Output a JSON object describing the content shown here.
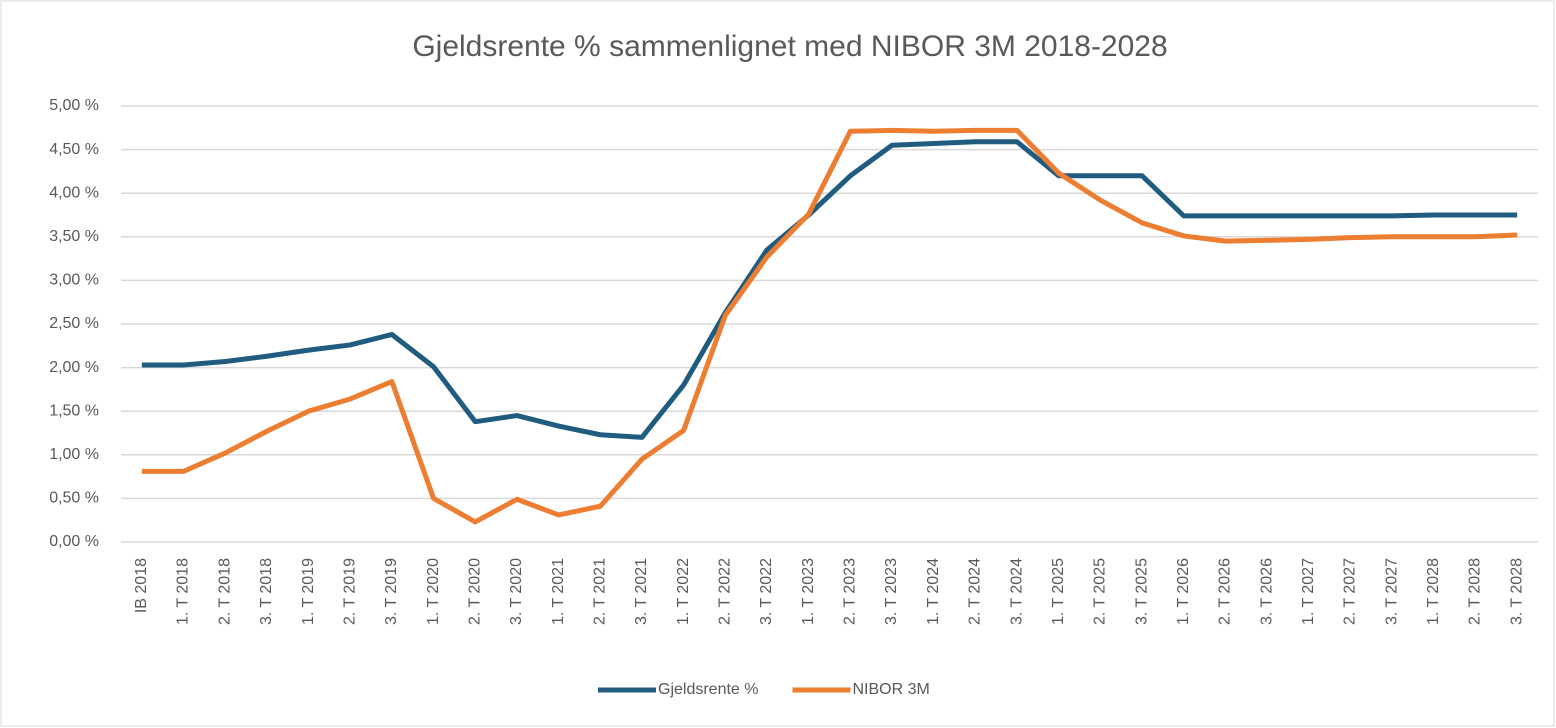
{
  "chart_data": {
    "type": "line",
    "title": "Gjeldsrente % sammenlignet med NIBOR 3M 2018-2028",
    "categories": [
      "IB 2018",
      "1. T 2018",
      "2. T 2018",
      "3. T 2018",
      "1. T 2019",
      "2. T 2019",
      "3. T 2019",
      "1. T 2020",
      "2. T 2020",
      "3. T 2020",
      "1. T 2021",
      "2. T 2021",
      "3. T 2021",
      "1. T 2022",
      "2. T 2022",
      "3. T 2022",
      "1. T 2023",
      "2. T 2023",
      "3. T 2023",
      "1. T 2024",
      "2. T 2024",
      "3. T 2024",
      "1. T 2025",
      "2. T 2025",
      "3. T 2025",
      "1. T 2026",
      "2. T 2026",
      "3. T 2026",
      "1. T 2027",
      "2. T 2027",
      "3. T 2027",
      "1. T 2028",
      "2. T 2028",
      "3. T 2028"
    ],
    "series": [
      {
        "name": "Gjeldsrente %",
        "color": "#1f5c7f",
        "values": [
          2.03,
          2.03,
          2.07,
          2.13,
          2.2,
          2.26,
          2.38,
          2.01,
          1.38,
          1.45,
          1.33,
          1.23,
          1.2,
          1.8,
          2.63,
          3.35,
          3.75,
          4.2,
          4.55,
          4.57,
          4.59,
          4.59,
          4.2,
          4.2,
          4.2,
          3.74,
          3.74,
          3.74,
          3.74,
          3.74,
          3.74,
          3.75,
          3.75,
          3.75
        ]
      },
      {
        "name": "NIBOR 3M",
        "color": "#ed7d31",
        "values": [
          0.81,
          0.81,
          1.02,
          1.27,
          1.5,
          1.64,
          1.84,
          0.5,
          0.23,
          0.49,
          0.31,
          0.41,
          0.95,
          1.28,
          2.6,
          3.27,
          3.76,
          4.71,
          4.72,
          4.71,
          4.72,
          4.72,
          4.23,
          3.92,
          3.66,
          3.51,
          3.45,
          3.46,
          3.47,
          3.49,
          3.5,
          3.5,
          3.5,
          3.52
        ]
      }
    ],
    "ylim": [
      0,
      5
    ],
    "yticks": [
      {
        "value": 0,
        "label": "0,00 %"
      },
      {
        "value": 0.5,
        "label": "0,50 %"
      },
      {
        "value": 1,
        "label": "1,00 %"
      },
      {
        "value": 1.5,
        "label": "1,50 %"
      },
      {
        "value": 2,
        "label": "2,00 %"
      },
      {
        "value": 2.5,
        "label": "2,50 %"
      },
      {
        "value": 3,
        "label": "3,00 %"
      },
      {
        "value": 3.5,
        "label": "3,50 %"
      },
      {
        "value": 4,
        "label": "4,00 %"
      },
      {
        "value": 4.5,
        "label": "4,50 %"
      },
      {
        "value": 5,
        "label": "5,00 %"
      }
    ],
    "grid": true,
    "legend": "bottom"
  }
}
